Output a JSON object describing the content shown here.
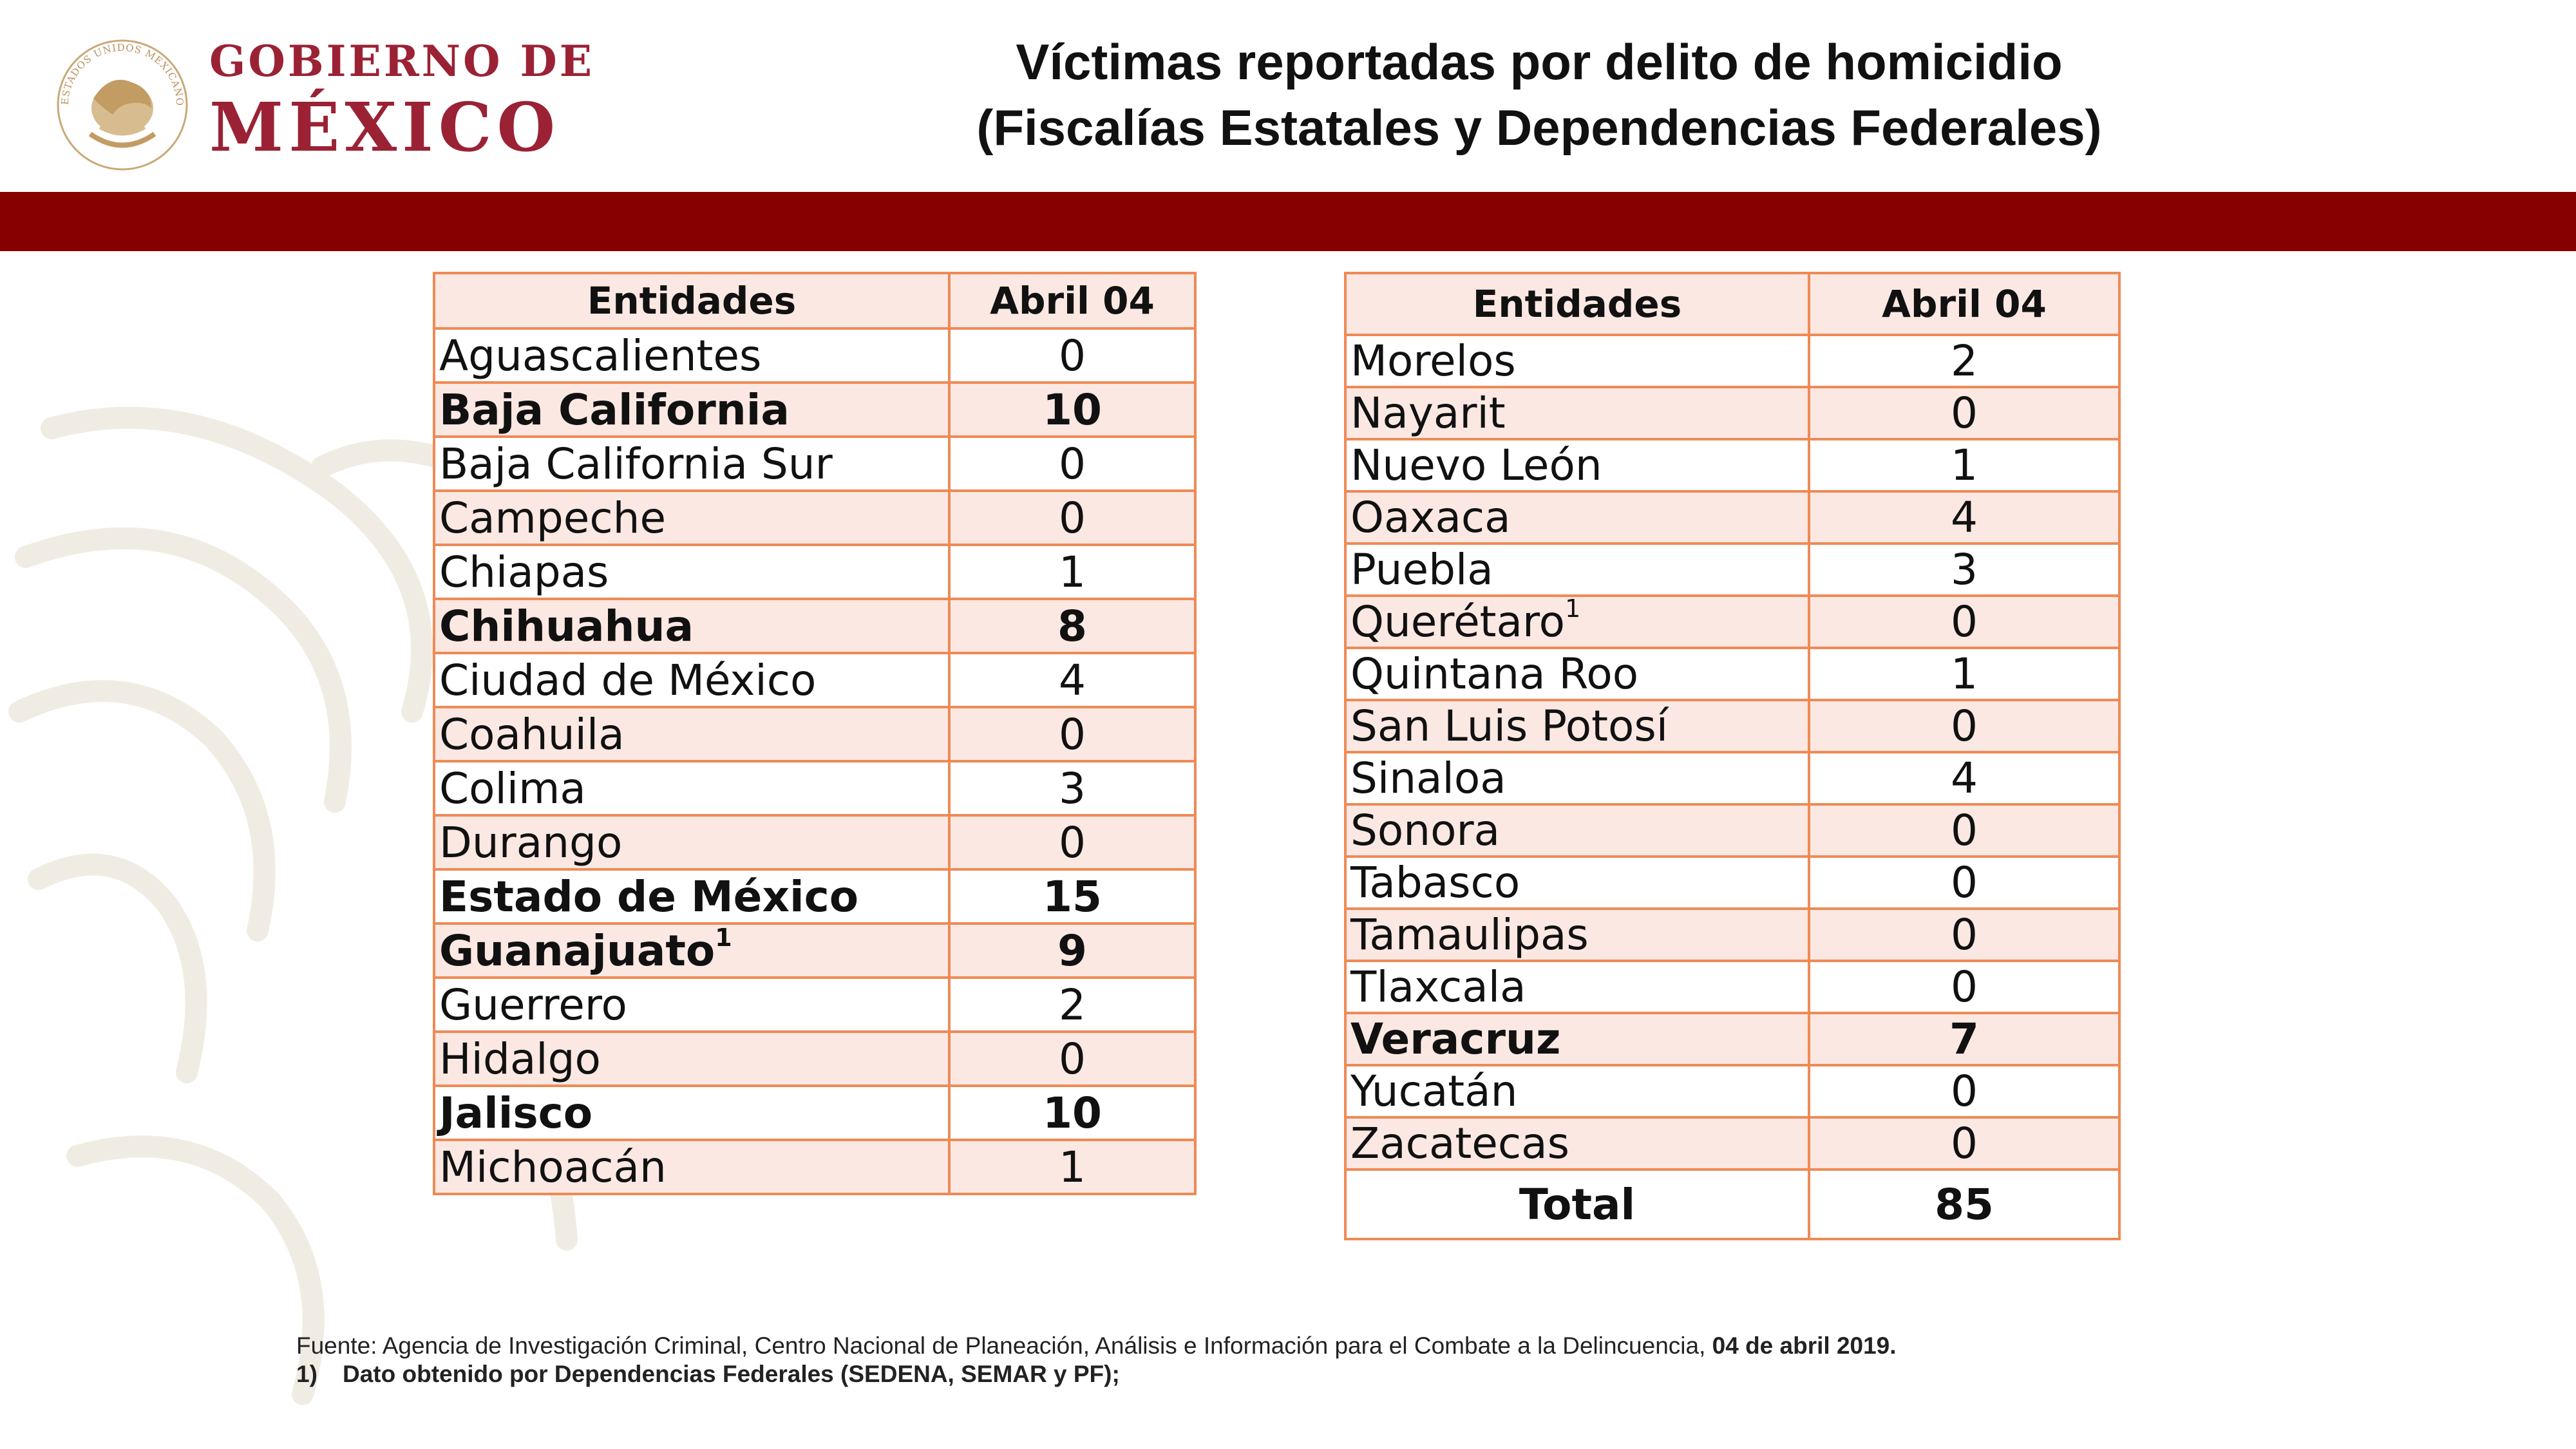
{
  "header": {
    "logo_line1": "GOBIERNO DE",
    "logo_line2": "MÉXICO",
    "seal_text": "ESTADOS UNIDOS MEXICANOS",
    "title_line1": "Víctimas reportadas por delito de homicidio",
    "title_line2": "(Fiscalías Estatales y Dependencias Federales)"
  },
  "colors": {
    "brand": "#9b2235",
    "band": "#870000",
    "table_border": "#ef8a55",
    "row_shade": "#fbe8e3"
  },
  "table_left": {
    "col_entity": "Entidades",
    "col_date": "Abril 04",
    "rows": [
      {
        "name": "Aguascalientes",
        "value": "0",
        "sup": ""
      },
      {
        "name": "Baja California",
        "value": "10",
        "sup": ""
      },
      {
        "name": "Baja California Sur",
        "value": "0",
        "sup": ""
      },
      {
        "name": "Campeche",
        "value": "0",
        "sup": ""
      },
      {
        "name": "Chiapas",
        "value": "1",
        "sup": ""
      },
      {
        "name": "Chihuahua",
        "value": "8",
        "sup": ""
      },
      {
        "name": "Ciudad de México",
        "value": "4",
        "sup": ""
      },
      {
        "name": "Coahuila",
        "value": "0",
        "sup": ""
      },
      {
        "name": "Colima",
        "value": "3",
        "sup": ""
      },
      {
        "name": "Durango",
        "value": "0",
        "sup": ""
      },
      {
        "name": "Estado de México",
        "value": "15",
        "sup": ""
      },
      {
        "name": "Guanajuato",
        "value": "9",
        "sup": "1"
      },
      {
        "name": "Guerrero",
        "value": "2",
        "sup": ""
      },
      {
        "name": "Hidalgo",
        "value": "0",
        "sup": ""
      },
      {
        "name": "Jalisco",
        "value": "10",
        "sup": ""
      },
      {
        "name": "Michoacán",
        "value": "1",
        "sup": ""
      }
    ]
  },
  "table_right": {
    "col_entity": "Entidades",
    "col_date": "Abril 04",
    "rows": [
      {
        "name": "Morelos",
        "value": "2",
        "sup": ""
      },
      {
        "name": "Nayarit",
        "value": "0",
        "sup": ""
      },
      {
        "name": "Nuevo León",
        "value": "1",
        "sup": ""
      },
      {
        "name": "Oaxaca",
        "value": "4",
        "sup": ""
      },
      {
        "name": "Puebla",
        "value": "3",
        "sup": ""
      },
      {
        "name": "Querétaro",
        "value": "0",
        "sup": "1"
      },
      {
        "name": "Quintana Roo",
        "value": "1",
        "sup": ""
      },
      {
        "name": "San Luis Potosí",
        "value": "0",
        "sup": ""
      },
      {
        "name": "Sinaloa",
        "value": "4",
        "sup": ""
      },
      {
        "name": "Sonora",
        "value": "0",
        "sup": ""
      },
      {
        "name": "Tabasco",
        "value": "0",
        "sup": ""
      },
      {
        "name": "Tamaulipas",
        "value": "0",
        "sup": ""
      },
      {
        "name": "Tlaxcala",
        "value": "0",
        "sup": ""
      },
      {
        "name": "Veracruz",
        "value": "7",
        "sup": ""
      },
      {
        "name": "Yucatán",
        "value": "0",
        "sup": ""
      },
      {
        "name": "Zacatecas",
        "value": "0",
        "sup": ""
      }
    ],
    "total_label": "Total",
    "total_value": "85"
  },
  "footer": {
    "source": "Fuente: Agencia de Investigación Criminal, Centro Nacional de Planeación, Análisis e Información para el Combate a la Delincuencia,",
    "source_date": "04 de abril 2019.",
    "note_num": "1)",
    "note_text": "Dato obtenido por Dependencias Federales (SEDENA, SEMAR y PF);"
  }
}
